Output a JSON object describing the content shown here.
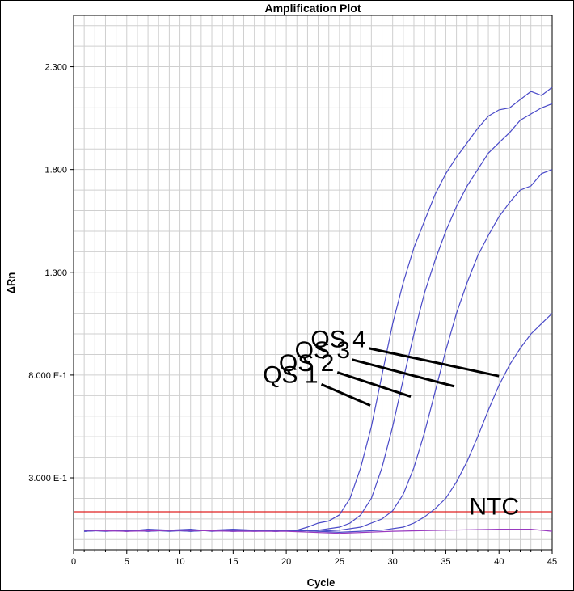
{
  "chart_data": {
    "type": "line",
    "title": "Amplification Plot",
    "xlabel": "Cycle",
    "ylabel": "ΔRn",
    "xlim": [
      0,
      45
    ],
    "ylim": [
      -0.05,
      2.55
    ],
    "x_ticks": [
      0,
      5,
      10,
      15,
      20,
      25,
      30,
      35,
      40,
      45
    ],
    "y_ticks": [
      {
        "value": 0.3,
        "label": "3.000 E-1"
      },
      {
        "value": 0.8,
        "label": "8.000 E-1"
      },
      {
        "value": 1.3,
        "label": "1.300"
      },
      {
        "value": 1.8,
        "label": "1.800"
      },
      {
        "value": 2.3,
        "label": "2.300"
      }
    ],
    "grid": true,
    "threshold": {
      "value": 0.135,
      "color": "#e02020"
    },
    "series": [
      {
        "name": "QS 4",
        "color": "#4a4ac8",
        "x": [
          1,
          3,
          5,
          7,
          9,
          11,
          13,
          15,
          17,
          19,
          21,
          22,
          23,
          24,
          25,
          26,
          27,
          28,
          29,
          30,
          31,
          32,
          33,
          34,
          35,
          36,
          37,
          38,
          39,
          40,
          41,
          42,
          43,
          44,
          45
        ],
        "y": [
          0.04,
          0.045,
          0.04,
          0.05,
          0.045,
          0.04,
          0.045,
          0.05,
          0.045,
          0.04,
          0.045,
          0.06,
          0.08,
          0.09,
          0.12,
          0.2,
          0.35,
          0.55,
          0.8,
          1.05,
          1.25,
          1.42,
          1.55,
          1.68,
          1.78,
          1.86,
          1.93,
          2.0,
          2.06,
          2.09,
          2.1,
          2.14,
          2.18,
          2.16,
          2.2
        ]
      },
      {
        "name": "QS 3",
        "color": "#4a4ac8",
        "x": [
          1,
          3,
          5,
          7,
          9,
          11,
          13,
          15,
          17,
          19,
          21,
          23,
          25,
          26,
          27,
          28,
          29,
          30,
          31,
          32,
          33,
          34,
          35,
          36,
          37,
          38,
          39,
          40,
          41,
          42,
          43,
          44,
          45
        ],
        "y": [
          0.045,
          0.04,
          0.045,
          0.04,
          0.045,
          0.05,
          0.04,
          0.045,
          0.04,
          0.045,
          0.04,
          0.045,
          0.06,
          0.08,
          0.12,
          0.2,
          0.35,
          0.55,
          0.78,
          1.0,
          1.2,
          1.36,
          1.5,
          1.62,
          1.72,
          1.8,
          1.88,
          1.93,
          1.98,
          2.04,
          2.07,
          2.1,
          2.12
        ]
      },
      {
        "name": "QS 2",
        "color": "#4a4ac8",
        "x": [
          1,
          3,
          5,
          7,
          9,
          11,
          13,
          15,
          17,
          19,
          21,
          23,
          25,
          27,
          29,
          30,
          31,
          32,
          33,
          34,
          35,
          36,
          37,
          38,
          39,
          40,
          41,
          42,
          43,
          44,
          45
        ],
        "y": [
          0.04,
          0.045,
          0.04,
          0.045,
          0.04,
          0.045,
          0.045,
          0.04,
          0.045,
          0.04,
          0.045,
          0.04,
          0.045,
          0.06,
          0.1,
          0.14,
          0.22,
          0.35,
          0.52,
          0.72,
          0.92,
          1.1,
          1.25,
          1.38,
          1.48,
          1.57,
          1.64,
          1.7,
          1.72,
          1.78,
          1.8
        ]
      },
      {
        "name": "QS 1",
        "color": "#4a4ac8",
        "x": [
          1,
          3,
          5,
          7,
          9,
          11,
          13,
          15,
          17,
          19,
          21,
          23,
          25,
          27,
          29,
          31,
          32,
          33,
          34,
          35,
          36,
          37,
          38,
          39,
          40,
          41,
          42,
          43,
          44,
          45
        ],
        "y": [
          0.04,
          0.045,
          0.045,
          0.04,
          0.045,
          0.04,
          0.045,
          0.04,
          0.045,
          0.04,
          0.045,
          0.04,
          0.035,
          0.04,
          0.045,
          0.06,
          0.08,
          0.11,
          0.15,
          0.2,
          0.28,
          0.38,
          0.5,
          0.63,
          0.75,
          0.85,
          0.93,
          1.0,
          1.05,
          1.1
        ]
      },
      {
        "name": "NTC",
        "color": "#9a3ac0",
        "x": [
          1,
          5,
          10,
          15,
          20,
          25,
          30,
          35,
          40,
          43,
          45
        ],
        "y": [
          0.045,
          0.04,
          0.045,
          0.04,
          0.04,
          0.03,
          0.04,
          0.045,
          0.05,
          0.05,
          0.04
        ]
      }
    ],
    "annotations": [
      {
        "text": "QS 4",
        "label_x": 27.5,
        "label_y": 0.935,
        "line_from": [
          27.8,
          0.93
        ],
        "line_to": [
          40.0,
          0.795
        ]
      },
      {
        "text": "QS 3",
        "label_x": 26.0,
        "label_y": 0.882,
        "line_from": [
          26.2,
          0.875
        ],
        "line_to": [
          35.8,
          0.745
        ]
      },
      {
        "text": "QS 2",
        "label_x": 24.5,
        "label_y": 0.82,
        "line_from": [
          24.8,
          0.813
        ],
        "line_to": [
          31.7,
          0.695
        ]
      },
      {
        "text": "QS 1",
        "label_x": 23.0,
        "label_y": 0.762,
        "line_from": [
          23.3,
          0.755
        ],
        "line_to": [
          27.9,
          0.652
        ]
      }
    ],
    "ntc_label": {
      "text": "NTC",
      "x": 37.2,
      "y": 0.16
    }
  }
}
